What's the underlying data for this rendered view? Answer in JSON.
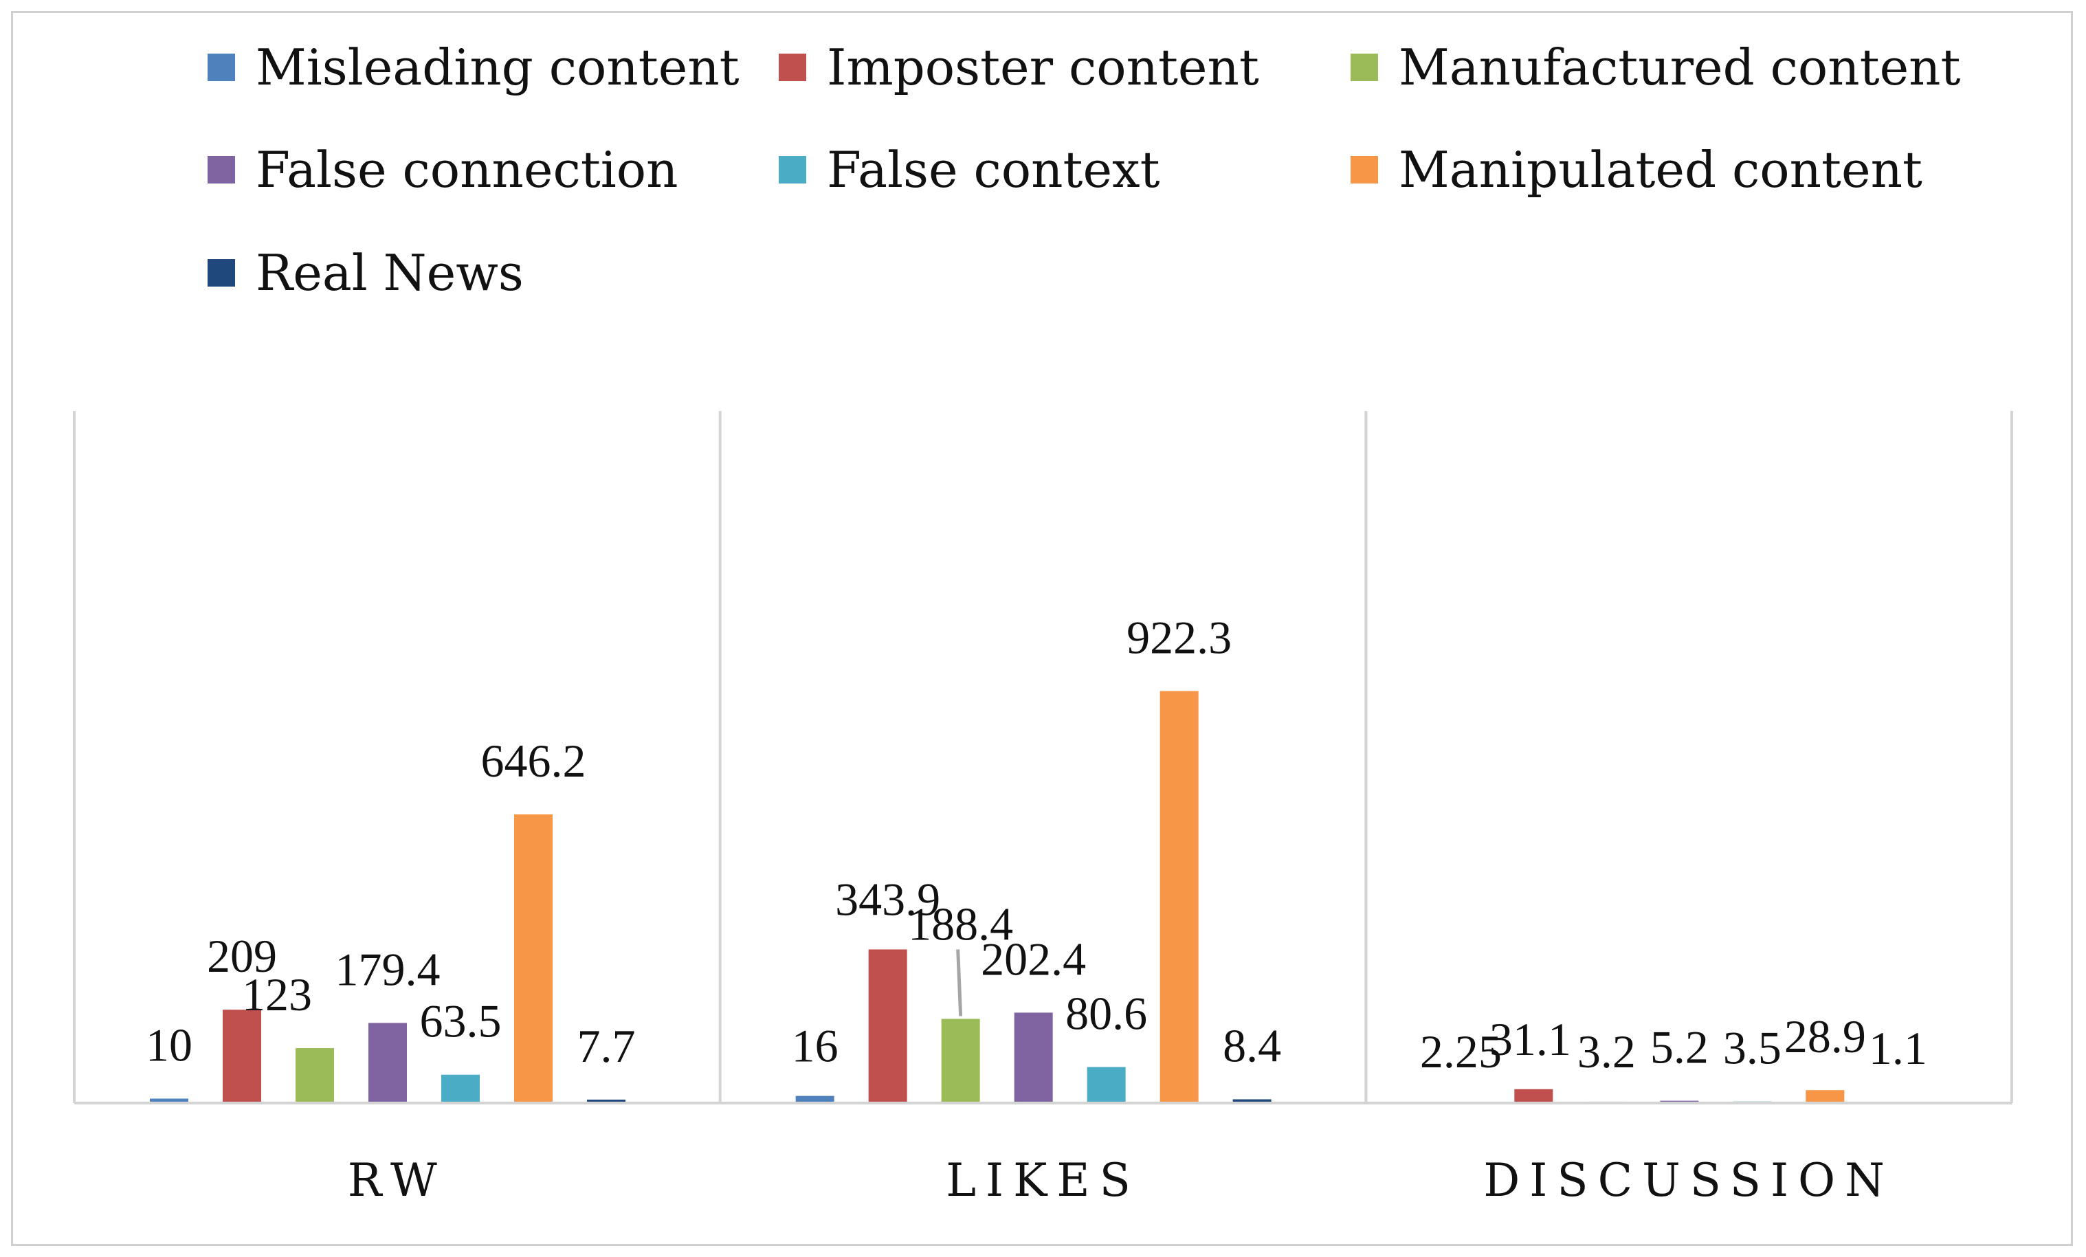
{
  "chart_data": {
    "type": "bar",
    "categories": [
      "RW",
      "LIKES",
      "DISCUSSION"
    ],
    "series": [
      {
        "name": "Misleading content",
        "color": "#4f81bd",
        "values": [
          10,
          16,
          2.25
        ]
      },
      {
        "name": "Imposter content",
        "color": "#c0504d",
        "values": [
          209,
          343.9,
          31.1
        ]
      },
      {
        "name": "Manufactured content",
        "color": "#9bbb59",
        "values": [
          123,
          188.4,
          3.2
        ]
      },
      {
        "name": "False connection",
        "color": "#8064a2",
        "values": [
          179.4,
          202.4,
          5.2
        ]
      },
      {
        "name": "False context",
        "color": "#4bacc6",
        "values": [
          63.5,
          80.6,
          3.5
        ]
      },
      {
        "name": "Manipulated content",
        "color": "#f79646",
        "values": [
          646.2,
          922.3,
          28.9
        ]
      },
      {
        "name": "Real News",
        "color": "#1f497d",
        "values": [
          7.7,
          8.4,
          1.1
        ]
      }
    ],
    "value_labels": [
      [
        "10",
        "16",
        "2.25"
      ],
      [
        "209",
        "343.9",
        "31.1"
      ],
      [
        "123",
        "188.4",
        "3.2"
      ],
      [
        "179.4",
        "202.4",
        "5.2"
      ],
      [
        "63.5",
        "80.6",
        "3.5"
      ],
      [
        "646.2",
        "922.3",
        "28.9"
      ],
      [
        "7.7",
        "8.4",
        "1.1"
      ]
    ],
    "ylim": [
      0,
      1000
    ],
    "title": "",
    "xlabel": "",
    "ylabel": "",
    "grid": false,
    "legend_position": "top"
  }
}
